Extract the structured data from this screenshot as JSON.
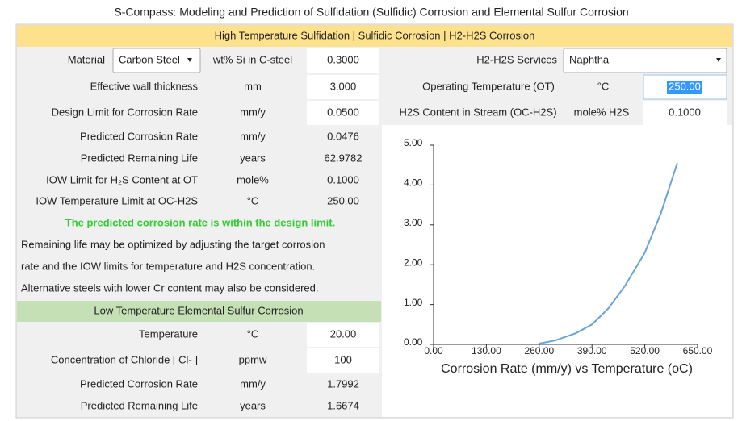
{
  "title": "S-Compass: Modeling and Prediction of Sulfidation (Sulfidic) Corrosion and Elemental Sulfur Corrosion",
  "sulfidation": {
    "header": "High Temperature Sulfidation | Sulfidic Corrosion | H2-H2S Corrosion",
    "material_label": "Material",
    "material": "Carbon Steel",
    "si_label": "wt% Si in C-steel",
    "si_value": "0.3000",
    "rows": [
      [
        "Effective wall thickness",
        "mm",
        "3.000"
      ],
      [
        "Design Limit for Corrosion Rate",
        "mm/y",
        "0.0500"
      ],
      [
        "Predicted Corrosion Rate",
        "mm/y",
        "0.0476"
      ],
      [
        "Predicted Remaining Life",
        "years",
        "62.9782"
      ],
      [
        "IOW Limit for H₂S Content at OT",
        "mole%",
        "0.1000"
      ],
      [
        "IOW Temperature Limit at OC-H2S",
        "°C",
        "250.00"
      ]
    ],
    "status": "The predicted corrosion rate is within the design limit.",
    "notes": [
      "Remaining life may be optimized by adjusting the target corrosion",
      "rate and the IOW limits for temperature and H2S concentration.",
      "Alternative steels with lower Cr content may also be considered."
    ],
    "services_label": "H2-H2S Services",
    "services": "Naphtha",
    "operating": [
      "Operating Temperature (OT)",
      "°C",
      "250.00"
    ],
    "h2s": [
      "H2S Content in Stream (OC-H2S)",
      "mole% H2S",
      "0.1000"
    ]
  },
  "elemental": {
    "header": "Low Temperature Elemental Sulfur Corrosion",
    "rows": [
      [
        "Temperature",
        "°C",
        "20.00"
      ],
      [
        "Concentration of Chloride [ Cl- ]",
        "ppmw",
        "100"
      ],
      [
        "Predicted Corrosion Rate",
        "mm/y",
        "1.7992"
      ],
      [
        "Predicted Remaining Life",
        "years",
        "1.6674"
      ]
    ]
  },
  "chart": {
    "type": "line",
    "x_label": "Corrosion Rate (mm/y) vs Temperature (oC)",
    "x": [
      260,
      300,
      350,
      390,
      430,
      470,
      520,
      560,
      600
    ],
    "values": [
      0.02,
      0.1,
      0.28,
      0.5,
      0.9,
      1.45,
      2.3,
      3.3,
      4.55
    ],
    "color": "#6aa3d5",
    "xlim": [
      0,
      650
    ],
    "ylim": [
      0,
      5
    ],
    "xticks": [
      {
        "value": 0,
        "label": "0.00"
      },
      {
        "value": 130,
        "label": "130.00"
      },
      {
        "value": 260,
        "label": "260.00"
      },
      {
        "value": 390,
        "label": "390.00"
      },
      {
        "value": 520,
        "label": "520.00"
      },
      {
        "value": 650,
        "label": "650.00"
      }
    ],
    "yticks": [
      {
        "value": 0,
        "label": "0.00"
      },
      {
        "value": 1,
        "label": "1.00"
      },
      {
        "value": 2,
        "label": "2.00"
      },
      {
        "value": 3,
        "label": "3.00"
      },
      {
        "value": 4,
        "label": "4.00"
      },
      {
        "value": 5,
        "label": "5.00"
      }
    ]
  }
}
